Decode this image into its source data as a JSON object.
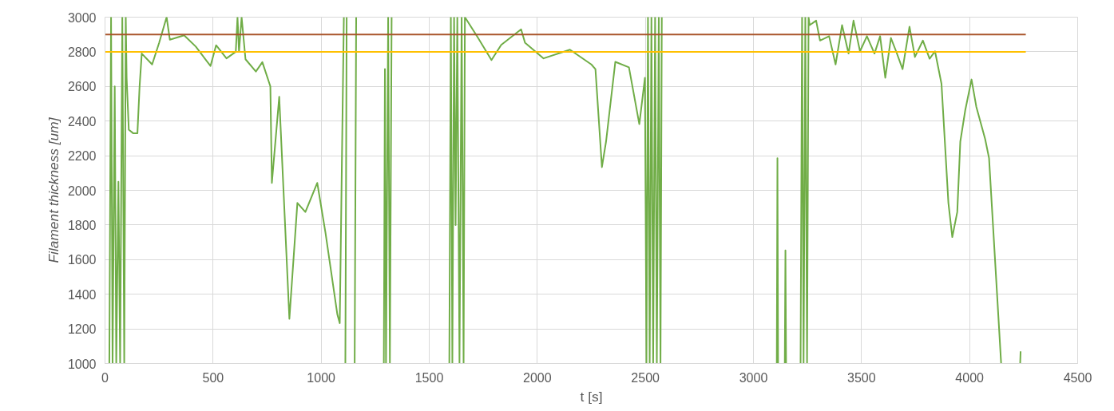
{
  "chart_data": {
    "type": "line",
    "xlabel": "t [s]",
    "ylabel": "Filament thickness [um]",
    "xlim": [
      0,
      4500
    ],
    "ylim": [
      1000,
      3000
    ],
    "xticks": [
      0,
      500,
      1000,
      1500,
      2000,
      2500,
      3000,
      3500,
      4000,
      4500
    ],
    "yticks": [
      1000,
      1200,
      1400,
      1600,
      1800,
      2000,
      2200,
      2400,
      2600,
      2800,
      3000
    ],
    "grid": true,
    "line_style": "solid",
    "series": [
      {
        "color": "#70ad47",
        "x": [
          20,
          28,
          35,
          45,
          52,
          62,
          70,
          80,
          89,
          96,
          100,
          110,
          130,
          150,
          160,
          170,
          218,
          250,
          285,
          300,
          366,
          420,
          488,
          514,
          562,
          605,
          613,
          620,
          632,
          650,
          698,
          728,
          765,
          772,
          806,
          853,
          890,
          927,
          982,
          1020,
          1075,
          1086,
          1105,
          1108,
          1112,
          1118,
          1121,
          1155,
          1162,
          1165,
          1290,
          1295,
          1300,
          1310,
          1318,
          1326,
          1330,
          1593,
          1600,
          1607,
          1615,
          1622,
          1630,
          1640,
          1650,
          1659,
          1665,
          1722,
          1788,
          1833,
          1925,
          1943,
          2029,
          2151,
          2250,
          2269,
          2299,
          2318,
          2361,
          2424,
          2472,
          2498,
          2505,
          2512,
          2520,
          2528,
          2536,
          2545,
          2553,
          2562,
          2570,
          2576,
          2580,
          3108,
          3111,
          3114,
          3118,
          3145,
          3148,
          3151,
          3155,
          3218,
          3225,
          3232,
          3240,
          3248,
          3255,
          3260,
          3290,
          3308,
          3350,
          3380,
          3410,
          3440,
          3463,
          3493,
          3525,
          3560,
          3586,
          3610,
          3636,
          3660,
          3690,
          3722,
          3747,
          3784,
          3815,
          3840,
          3870,
          3902,
          3920,
          3943,
          3957,
          3980,
          4009,
          4031,
          4072,
          4090,
          4146,
          4150,
          4234,
          4236
        ],
        "values": [
          1000,
          3000,
          1000,
          2600,
          1000,
          2050,
          1000,
          3000,
          1000,
          3000,
          2650,
          2350,
          2330,
          2330,
          2600,
          2790,
          2727,
          2850,
          3000,
          2870,
          2895,
          2830,
          2718,
          2838,
          2762,
          2800,
          3000,
          2800,
          3000,
          2757,
          2686,
          2740,
          2600,
          2043,
          2540,
          1258,
          1927,
          1875,
          2043,
          1755,
          1283,
          1233,
          3000,
          null,
          1000,
          3000,
          null,
          1000,
          3000,
          null,
          1000,
          2700,
          1000,
          3000,
          1000,
          3000,
          null,
          1000,
          3000,
          1000,
          3000,
          1800,
          3000,
          1000,
          3000,
          1000,
          3000,
          2888,
          2752,
          2840,
          2930,
          2853,
          2762,
          2812,
          2727,
          2700,
          2134,
          2281,
          2742,
          2710,
          2382,
          2650,
          1000,
          3000,
          1000,
          3000,
          1000,
          3000,
          1000,
          3000,
          1000,
          3000,
          null,
          1000,
          2186,
          1000,
          null,
          1000,
          1653,
          1000,
          null,
          1000,
          3000,
          1000,
          3000,
          1000,
          3000,
          2954,
          2980,
          2865,
          2890,
          2727,
          2954,
          2790,
          2980,
          2803,
          2890,
          2790,
          2890,
          2650,
          2880,
          2803,
          2700,
          2945,
          2770,
          2865,
          2760,
          2803,
          2615,
          1927,
          1730,
          1875,
          2281,
          2463,
          2640,
          2483,
          2296,
          2186,
          1000,
          null,
          1000,
          1070
        ]
      },
      {
        "color": "#a9542b",
        "x": [
          0,
          4260
        ],
        "values": [
          2900,
          2900
        ]
      },
      {
        "color": "#ffc000",
        "x": [
          0,
          4260
        ],
        "values": [
          2800,
          2800
        ]
      }
    ]
  }
}
